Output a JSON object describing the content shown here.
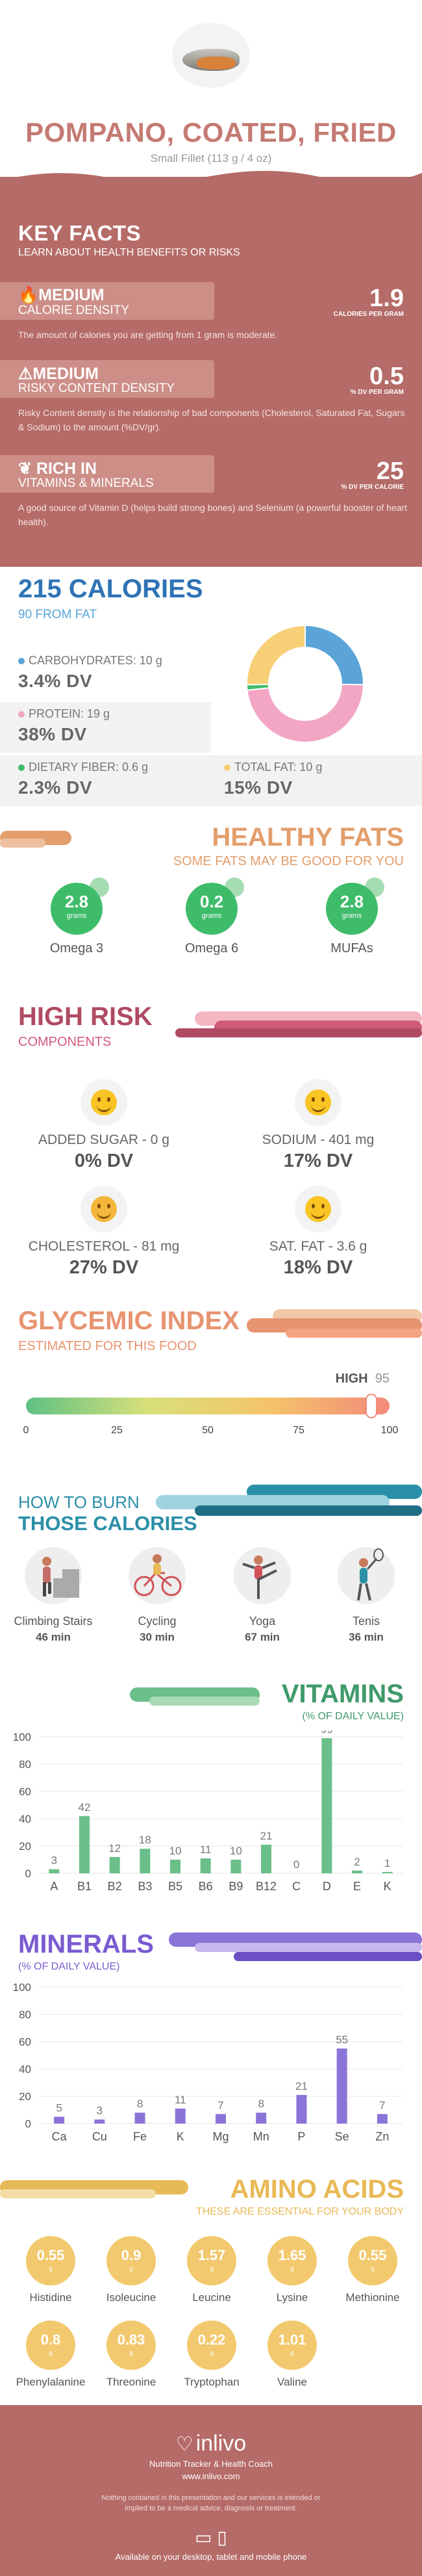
{
  "header": {
    "title": "POMPANO, COATED, FRIED",
    "serving": "Small Fillet (113 g / 4 oz)"
  },
  "key_facts": {
    "title": "KEY FACTS",
    "subtitle": "LEARN ABOUT HEALTH BENEFITS OR RISKS",
    "items": [
      {
        "level": "MEDIUM",
        "label": "CALORIE DENSITY",
        "value": "1.9",
        "unit": "CALORIES PER GRAM",
        "desc": "The amount of calories you are getting from 1 gram is moderate.",
        "icon": "flame-icon"
      },
      {
        "level": "MEDIUM",
        "label": "RISKY CONTENT DENSITY",
        "value": "0.5",
        "unit": "% DV PER GRAM",
        "desc": "Risky Content density is the relationship of bad components (Cholesterol, Saturated Fat, Sugars & Sodium) to the amount (%DV/gr).",
        "icon": "warning-icon"
      },
      {
        "level": "RICH IN",
        "label": "VITAMINS & MINERALS",
        "value": "25",
        "unit": "% DV PER CALORIE",
        "desc": "A good source of Vitamin D (helps build strong bones) and Selenium (a powerful booster of heart health).",
        "icon": "leaf-icon"
      }
    ]
  },
  "calories": {
    "title": "215 CALORIES",
    "from_fat": "90 FROM FAT",
    "macros": [
      {
        "name": "CARBOHYDRATES: 10 g",
        "dv": "3.4% DV",
        "color": "#5aa4d8",
        "grams": 10
      },
      {
        "name": "PROTEIN: 19 g",
        "dv": "38% DV",
        "color": "#f2a6c4",
        "grams": 19
      },
      {
        "name": "DIETARY FIBER: 0.6 g",
        "dv": "2.3% DV",
        "color": "#3ebc6a",
        "grams": 0.6
      },
      {
        "name": "TOTAL FAT: 10 g",
        "dv": "15% DV",
        "color": "#f7cf76",
        "grams": 10
      }
    ]
  },
  "healthy_fats": {
    "title": "HEALTHY FATS",
    "subtitle": "SOME FATS MAY BE GOOD FOR YOU",
    "items": [
      {
        "value": "2.8",
        "unit": "grams",
        "name": "Omega 3"
      },
      {
        "value": "0.2",
        "unit": "grams",
        "name": "Omega 6"
      },
      {
        "value": "2.8",
        "unit": "grams",
        "name": "MUFAs"
      }
    ]
  },
  "high_risk": {
    "title": "HIGH RISK",
    "subtitle": "COMPONENTS",
    "items": [
      {
        "label": "ADDED SUGAR - 0 g",
        "dv": "0% DV",
        "icon": "happy-face-icon"
      },
      {
        "label": "SODIUM - 401 mg",
        "dv": "17% DV",
        "icon": "smile-face-icon"
      },
      {
        "label": "CHOLESTEROL - 81 mg",
        "dv": "27% DV",
        "icon": "neutral-face-icon"
      },
      {
        "label": "SAT. FAT - 3.6 g",
        "dv": "18% DV",
        "icon": "smile-face-icon"
      }
    ]
  },
  "glycemic": {
    "title": "GLYCEMIC INDEX",
    "subtitle": "ESTIMATED FOR THIS FOOD",
    "level": "HIGH",
    "value": "95",
    "ticks": [
      "0",
      "25",
      "50",
      "75",
      "100"
    ],
    "fraction": 0.95
  },
  "burn": {
    "line1": "HOW TO BURN",
    "line2": "THOSE CALORIES",
    "items": [
      {
        "name": "Climbing Stairs",
        "minutes": "46 min",
        "icon": "stairs-icon"
      },
      {
        "name": "Cycling",
        "minutes": "30 min",
        "icon": "bicycle-icon"
      },
      {
        "name": "Yoga",
        "minutes": "67 min",
        "icon": "yoga-icon"
      },
      {
        "name": "Tenis",
        "minutes": "36 min",
        "icon": "tennis-icon"
      }
    ]
  },
  "vitamins": {
    "title": "VITAMINS",
    "subtitle": "(% OF DAILY VALUE)",
    "chart_data": {
      "type": "bar",
      "categories": [
        "A",
        "B1",
        "B2",
        "B3",
        "B5",
        "B6",
        "B9",
        "B12",
        "C",
        "D",
        "E",
        "K"
      ],
      "values": [
        3,
        42,
        12,
        18,
        10,
        11,
        10,
        21,
        0,
        99,
        2,
        1
      ],
      "ylim": [
        0,
        100
      ],
      "yticks": [
        0,
        20,
        40,
        60,
        80,
        100
      ],
      "color": "#6bbf8a",
      "grid": true
    }
  },
  "minerals": {
    "title": "MINERALS",
    "subtitle": "(% OF DAILY VALUE)",
    "chart_data": {
      "type": "bar",
      "categories": [
        "Ca",
        "Cu",
        "Fe",
        "K",
        "Mg",
        "Mn",
        "P",
        "Se",
        "Zn"
      ],
      "values": [
        5,
        3,
        8,
        11,
        7,
        8,
        21,
        55,
        7
      ],
      "ylim": [
        0,
        100
      ],
      "yticks": [
        0,
        20,
        40,
        60,
        80,
        100
      ],
      "color": "#8b74d8",
      "grid": true
    }
  },
  "amino": {
    "title": "AMINO ACIDS",
    "subtitle": "THESE ARE ESSENTIAL FOR YOUR BODY",
    "unit": "g",
    "items": [
      {
        "value": "0.55",
        "name": "Histidine"
      },
      {
        "value": "0.9",
        "name": "Isoleucine"
      },
      {
        "value": "1.57",
        "name": "Leucine"
      },
      {
        "value": "1.65",
        "name": "Lysine"
      },
      {
        "value": "0.55",
        "name": "Methionine"
      },
      {
        "value": "0.8",
        "name": "Phenylalanine"
      },
      {
        "value": "0.83",
        "name": "Threonine"
      },
      {
        "value": "0.22",
        "name": "Tryptophan"
      },
      {
        "value": "1.01",
        "name": "Valine"
      }
    ]
  },
  "footer": {
    "brand": "inlivo",
    "tagline": "Nutrition Tracker & Health Coach",
    "url": "www.inlivo.com",
    "disclaimer": "Nothing contained in this presentation and our services is intended or implied to be a medical advice, diagnosis or treatment.",
    "devices": "Available on your desktop, tablet and mobile phone"
  }
}
